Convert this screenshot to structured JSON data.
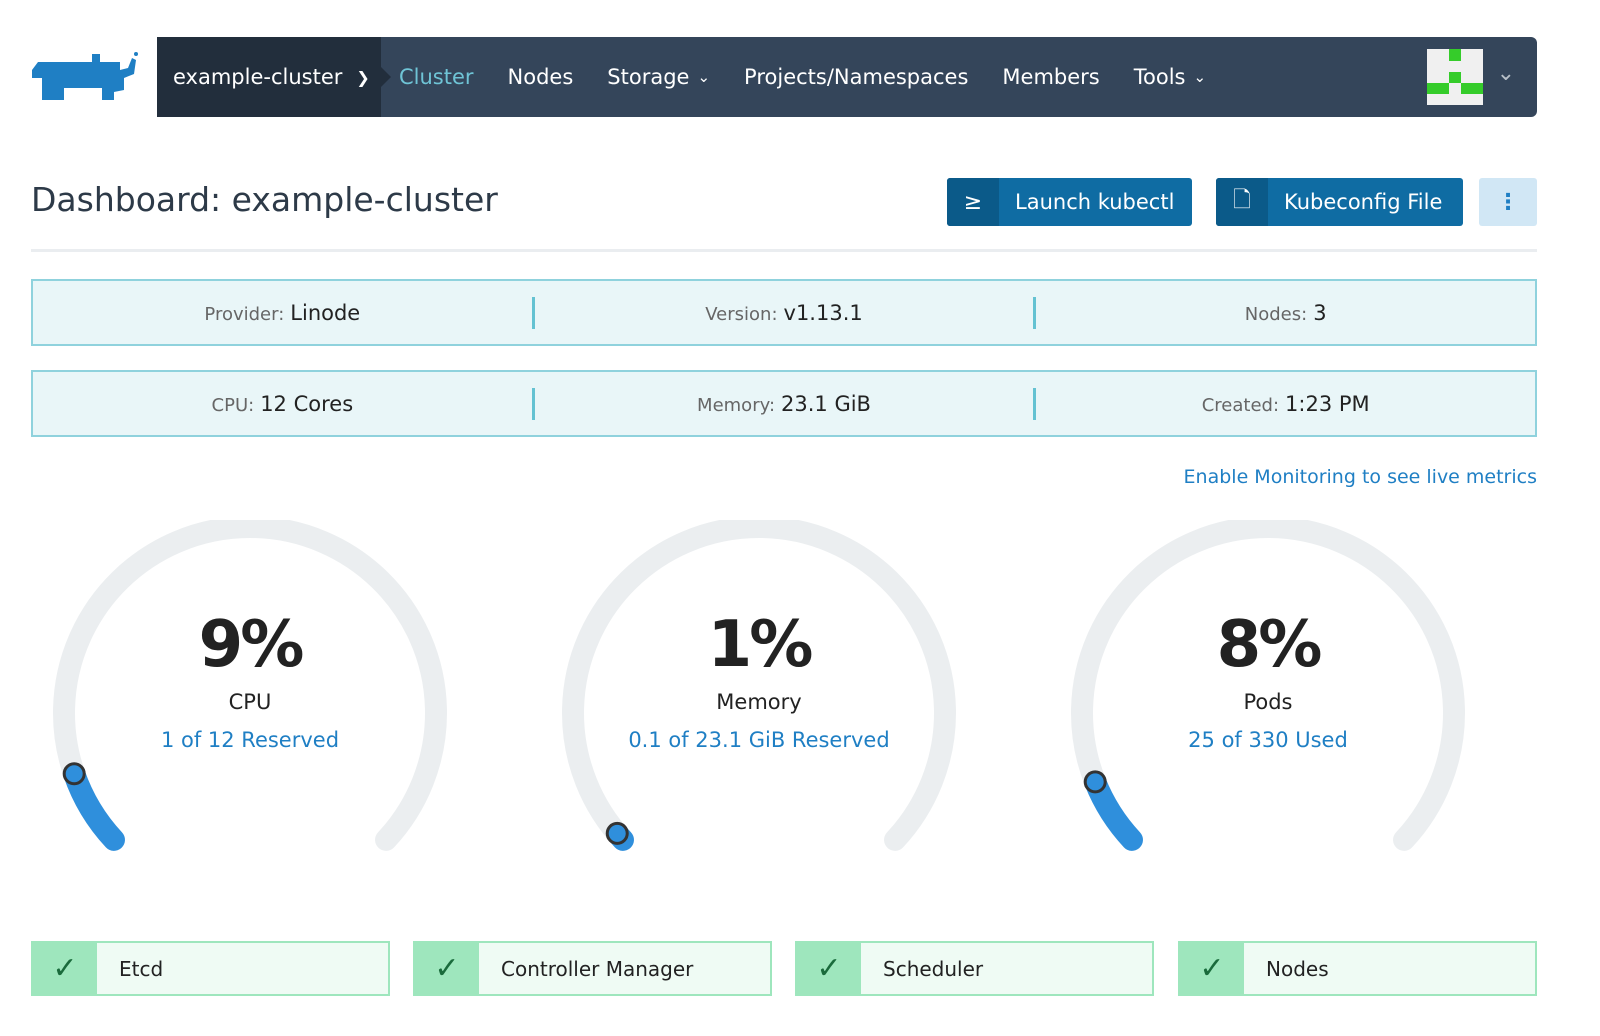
{
  "nav": {
    "cluster": "example-cluster",
    "items": [
      {
        "label": "Cluster",
        "active": true
      },
      {
        "label": "Nodes"
      },
      {
        "label": "Storage",
        "dropdown": true
      },
      {
        "label": "Projects/Namespaces"
      },
      {
        "label": "Members"
      },
      {
        "label": "Tools",
        "dropdown": true
      }
    ]
  },
  "header": {
    "title": "Dashboard: example-cluster",
    "launch_kubectl": "Launch kubectl",
    "kubeconfig": "Kubeconfig File",
    "kubectl_icon": "≥"
  },
  "info_row1": [
    {
      "key": "Provider:",
      "value": "Linode"
    },
    {
      "key": "Version:",
      "value": "v1.13.1"
    },
    {
      "key": "Nodes:",
      "value": "3"
    }
  ],
  "info_row2": [
    {
      "key": "CPU:",
      "value": "12 Cores"
    },
    {
      "key": "Memory:",
      "value": "23.1 GiB"
    },
    {
      "key": "Created:",
      "value": "1:23 PM"
    }
  ],
  "monitoring_link": "Enable Monitoring to see live metrics",
  "gauges": [
    {
      "percent": "9%",
      "value": 9,
      "label": "CPU",
      "sub": "1 of 12 Reserved"
    },
    {
      "percent": "1%",
      "value": 1,
      "label": "Memory",
      "sub": "0.1 of 23.1 GiB Reserved"
    },
    {
      "percent": "8%",
      "value": 8,
      "label": "Pods",
      "sub": "25 of 330 Used"
    }
  ],
  "colors": {
    "accent": "#1f7fc4",
    "nav": "#34455a",
    "gauge_track": "#ebeef0",
    "status_ok": "#9ee6bd"
  },
  "status": [
    {
      "label": "Etcd"
    },
    {
      "label": "Controller Manager"
    },
    {
      "label": "Scheduler"
    },
    {
      "label": "Nodes"
    }
  ]
}
